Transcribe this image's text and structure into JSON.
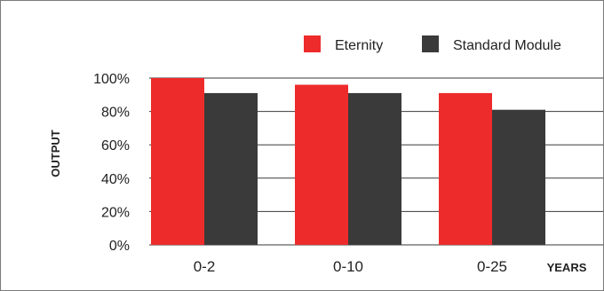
{
  "chart_data": {
    "type": "bar",
    "categories": [
      "0-2",
      "0-10",
      "0-25"
    ],
    "series": [
      {
        "name": "Eternity",
        "values": [
          100,
          96,
          91
        ],
        "color": "#ee2b2b"
      },
      {
        "name": "Standard Module",
        "values": [
          91,
          91,
          81
        ],
        "color": "#3a3a3a"
      }
    ],
    "xlabel": "YEARS",
    "ylabel": "OUTPUT",
    "ylim": [
      0,
      100
    ],
    "yticks": [
      0,
      20,
      40,
      60,
      80,
      100
    ],
    "ytick_labels": [
      "0%",
      "20%",
      "40%",
      "60%",
      "80%",
      "100%"
    ],
    "grid": true,
    "legend_position": "top-right"
  }
}
